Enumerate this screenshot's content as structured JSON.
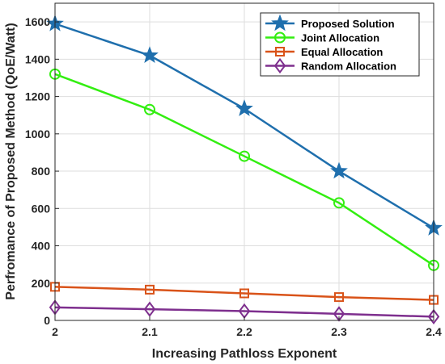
{
  "chart_data": {
    "type": "line",
    "title": "",
    "xlabel": "Increasing Pathloss Exponent",
    "ylabel": "Perfromance of Proposed Method (QoE/Watt)",
    "x": [
      2,
      2.1,
      2.2,
      2.3,
      2.4
    ],
    "x_tick_labels": [
      "2",
      "2.1",
      "2.2",
      "2.3",
      "2.4"
    ],
    "xlim": [
      2,
      2.4
    ],
    "ylim": [
      0,
      1700
    ],
    "y_ticks": [
      0,
      200,
      400,
      600,
      800,
      1000,
      1200,
      1400,
      1600
    ],
    "y_tick_labels": [
      "0",
      "200",
      "400",
      "600",
      "800",
      "1000",
      "1200",
      "1400",
      "1600"
    ],
    "grid": true,
    "legend_position": "top-right",
    "series": [
      {
        "name": "Proposed Solution",
        "values": [
          1590,
          1420,
          1135,
          800,
          495
        ],
        "color": "#1f6fad",
        "marker": "star-icon"
      },
      {
        "name": "Joint Allocation",
        "values": [
          1320,
          1130,
          880,
          630,
          295
        ],
        "color": "#33ee11",
        "marker": "circle-icon"
      },
      {
        "name": "Equal Allocation",
        "values": [
          180,
          165,
          145,
          125,
          110
        ],
        "color": "#d95319",
        "marker": "square-icon"
      },
      {
        "name": "Random Allocation",
        "values": [
          70,
          60,
          50,
          35,
          20
        ],
        "color": "#7e2f8e",
        "marker": "diamond-icon"
      }
    ]
  }
}
